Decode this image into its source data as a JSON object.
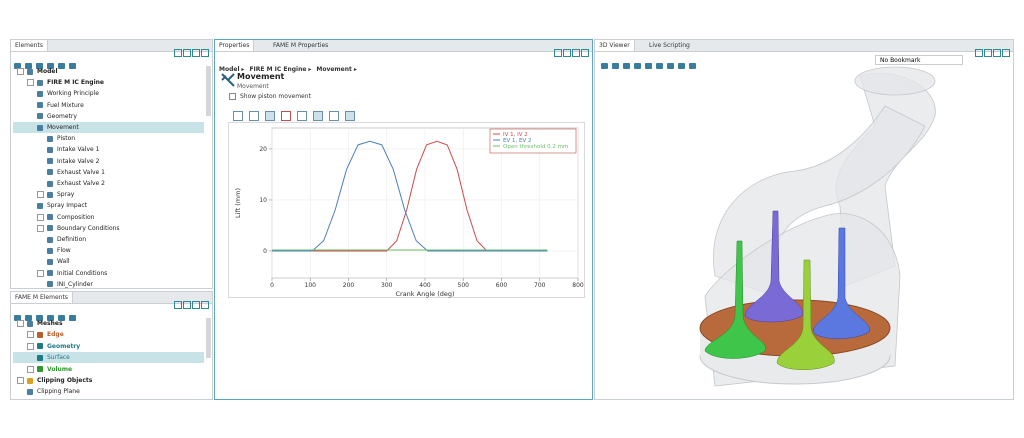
{
  "elements_panel": {
    "tab": "Elements",
    "tree": [
      "Model",
      "FIRE M IC Engine",
      "Working Principle",
      "Fuel Mixture",
      "Geometry",
      "Movement",
      "Piston",
      "Intake Valve 1",
      "Intake Valve 2",
      "Exhaust Valve 1",
      "Exhaust Valve 2",
      "Spray",
      "Spray Impact",
      "Composition",
      "Boundary Conditions",
      "Definition",
      "Flow",
      "Wall",
      "Initial Conditions",
      "INI_Cylinder"
    ]
  },
  "fame_elements_panel": {
    "tab": "FAME M Elements",
    "tree": [
      "Meshes",
      "Edge",
      "Geometry",
      "Surface",
      "Volume",
      "Clipping Objects",
      "Clipping Plane"
    ]
  },
  "properties_panel": {
    "tabs": [
      "Properties",
      "FAME M Properties"
    ],
    "breadcrumb": [
      "Model",
      "FIRE M IC Engine",
      "Movement"
    ],
    "heading": "Movement",
    "subheading": "Movement",
    "checkbox": "Show piston movement"
  },
  "chart_data": {
    "type": "line",
    "xlabel": "Crank Angle (deg)",
    "ylabel": "Lift (mm)",
    "xlim": [
      0,
      800
    ],
    "xticks": [
      0,
      100,
      200,
      300,
      400,
      500,
      600,
      700,
      800
    ],
    "ylim": [
      -5.3,
      24.1
    ],
    "yticks": [
      0,
      10,
      20
    ],
    "grid": true,
    "legend": "upper right",
    "series": [
      {
        "name": "IV 1, IV 2",
        "color": "#d0494a",
        "x": [
          0,
          300,
          326,
          352,
          378,
          404,
          431,
          458,
          484,
          510,
          536,
          562,
          720
        ],
        "values": [
          0,
          0,
          2,
          8,
          16,
          20.8,
          21.5,
          20.8,
          16,
          8,
          2,
          0,
          0
        ]
      },
      {
        "name": "EV 1, EV 2",
        "color": "#4a7fc0",
        "x": [
          0,
          105,
          135,
          165,
          195,
          225,
          256,
          287,
          317,
          347,
          377,
          407,
          720
        ],
        "values": [
          0,
          0,
          2,
          8,
          16,
          20.8,
          21.5,
          20.8,
          16,
          8,
          2,
          0,
          0
        ]
      },
      {
        "name": "Open threshold 0.2 mm",
        "color": "#6cbf6a",
        "x": [
          0,
          720
        ],
        "values": [
          0.2,
          0.2
        ]
      }
    ]
  },
  "viewer_panel": {
    "tabs": [
      "3D Viewer",
      "Live Scripting"
    ],
    "bookmark": "No Bookmark"
  }
}
